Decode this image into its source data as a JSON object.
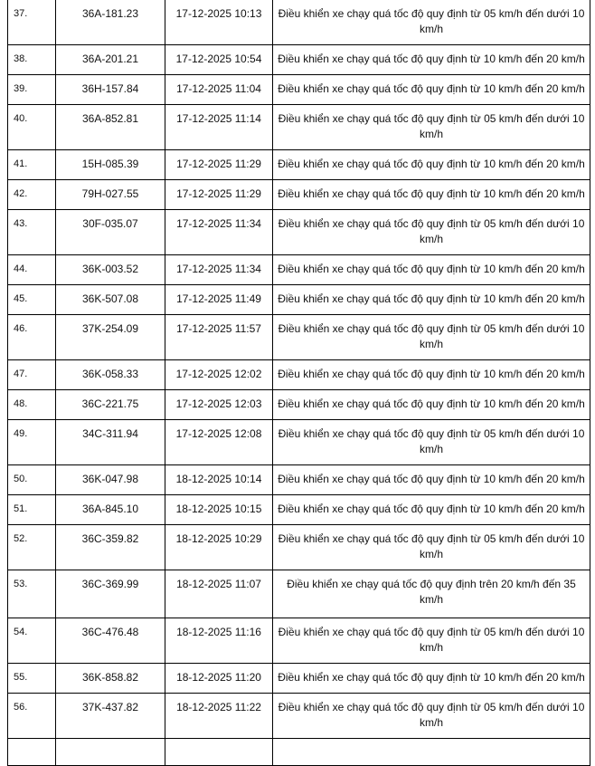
{
  "rows": [
    {
      "no": "37.",
      "plate": "36A-181.23",
      "time": "17-12-2025 10:13",
      "desc": "Điều khiển xe chạy quá tốc độ quy định từ 05 km/h đến dưới 10 km/h"
    },
    {
      "no": "38.",
      "plate": "36A-201.21",
      "time": "17-12-2025 10:54",
      "desc": "Điều khiển xe chạy quá tốc độ quy định từ 10 km/h đến 20 km/h"
    },
    {
      "no": "39.",
      "plate": "36H-157.84",
      "time": "17-12-2025 11:04",
      "desc": "Điều khiển xe chạy quá tốc độ quy định từ 10 km/h đến 20 km/h"
    },
    {
      "no": "40.",
      "plate": "36A-852.81",
      "time": "17-12-2025 11:14",
      "desc": "Điều khiển xe chạy quá tốc độ quy định từ 05 km/h đến dưới 10 km/h"
    },
    {
      "no": "41.",
      "plate": "15H-085.39",
      "time": "17-12-2025 11:29",
      "desc": "Điều khiển xe chạy quá tốc độ quy định từ 10 km/h đến 20 km/h"
    },
    {
      "no": "42.",
      "plate": "79H-027.55",
      "time": "17-12-2025 11:29",
      "desc": "Điều khiển xe chạy quá tốc độ quy định từ 10 km/h đến 20 km/h"
    },
    {
      "no": "43.",
      "plate": "30F-035.07",
      "time": "17-12-2025 11:34",
      "desc": "Điều khiển xe chạy quá tốc độ quy định từ 05 km/h đến dưới 10 km/h"
    },
    {
      "no": "44.",
      "plate": "36K-003.52",
      "time": "17-12-2025 11:34",
      "desc": "Điều khiển xe chạy quá tốc độ quy định từ 10 km/h đến 20 km/h"
    },
    {
      "no": "45.",
      "plate": "36K-507.08",
      "time": "17-12-2025 11:49",
      "desc": "Điều khiển xe chạy quá tốc độ quy định từ 10 km/h đến 20 km/h"
    },
    {
      "no": "46.",
      "plate": "37K-254.09",
      "time": "17-12-2025 11:57",
      "desc": "Điều khiển xe chạy quá tốc độ quy định từ 05 km/h đến dưới 10 km/h"
    },
    {
      "no": "47.",
      "plate": "36K-058.33",
      "time": "17-12-2025 12:02",
      "desc": "Điều khiển xe chạy quá tốc độ quy định từ 10 km/h đến 20 km/h"
    },
    {
      "no": "48.",
      "plate": "36C-221.75",
      "time": "17-12-2025 12:03",
      "desc": "Điều khiển xe chạy quá tốc độ quy định từ 10 km/h đến 20 km/h"
    },
    {
      "no": "49.",
      "plate": "34C-311.94",
      "time": "17-12-2025 12:08",
      "desc": "Điều khiển xe chạy quá tốc độ quy định từ 05 km/h đến dưới 10 km/h"
    },
    {
      "no": "50.",
      "plate": "36K-047.98",
      "time": "18-12-2025 10:14",
      "desc": "Điều khiển xe chạy quá tốc độ quy định từ 10 km/h đến 20 km/h"
    },
    {
      "no": "51.",
      "plate": "36A-845.10",
      "time": "18-12-2025 10:15",
      "desc": "Điều khiển xe chạy quá tốc độ quy định từ 10 km/h đến 20 km/h"
    },
    {
      "no": "52.",
      "plate": "36C-359.82",
      "time": "18-12-2025 10:29",
      "desc": "Điều khiển xe chạy quá tốc độ quy định từ 05 km/h đến dưới 10 km/h"
    },
    {
      "no": "53.",
      "plate": "36C-369.99",
      "time": "18-12-2025 11:07",
      "desc": "Điều khiển xe chạy quá tốc độ quy định trên 20 km/h đến 35 km/h"
    },
    {
      "no": "54.",
      "plate": "36C-476.48",
      "time": "18-12-2025 11:16",
      "desc": "Điều khiển xe chạy quá tốc độ quy định từ 05 km/h đến dưới 10 km/h"
    },
    {
      "no": "55.",
      "plate": "36K-858.82",
      "time": "18-12-2025 11:20",
      "desc": "Điều khiển xe chạy quá tốc độ quy định từ 10 km/h đến 20 km/h"
    },
    {
      "no": "56.",
      "plate": "37K-437.82",
      "time": "18-12-2025 11:22",
      "desc": "Điều khiển xe chạy quá tốc độ quy định từ 05 km/h đến dưới 10 km/h"
    }
  ]
}
